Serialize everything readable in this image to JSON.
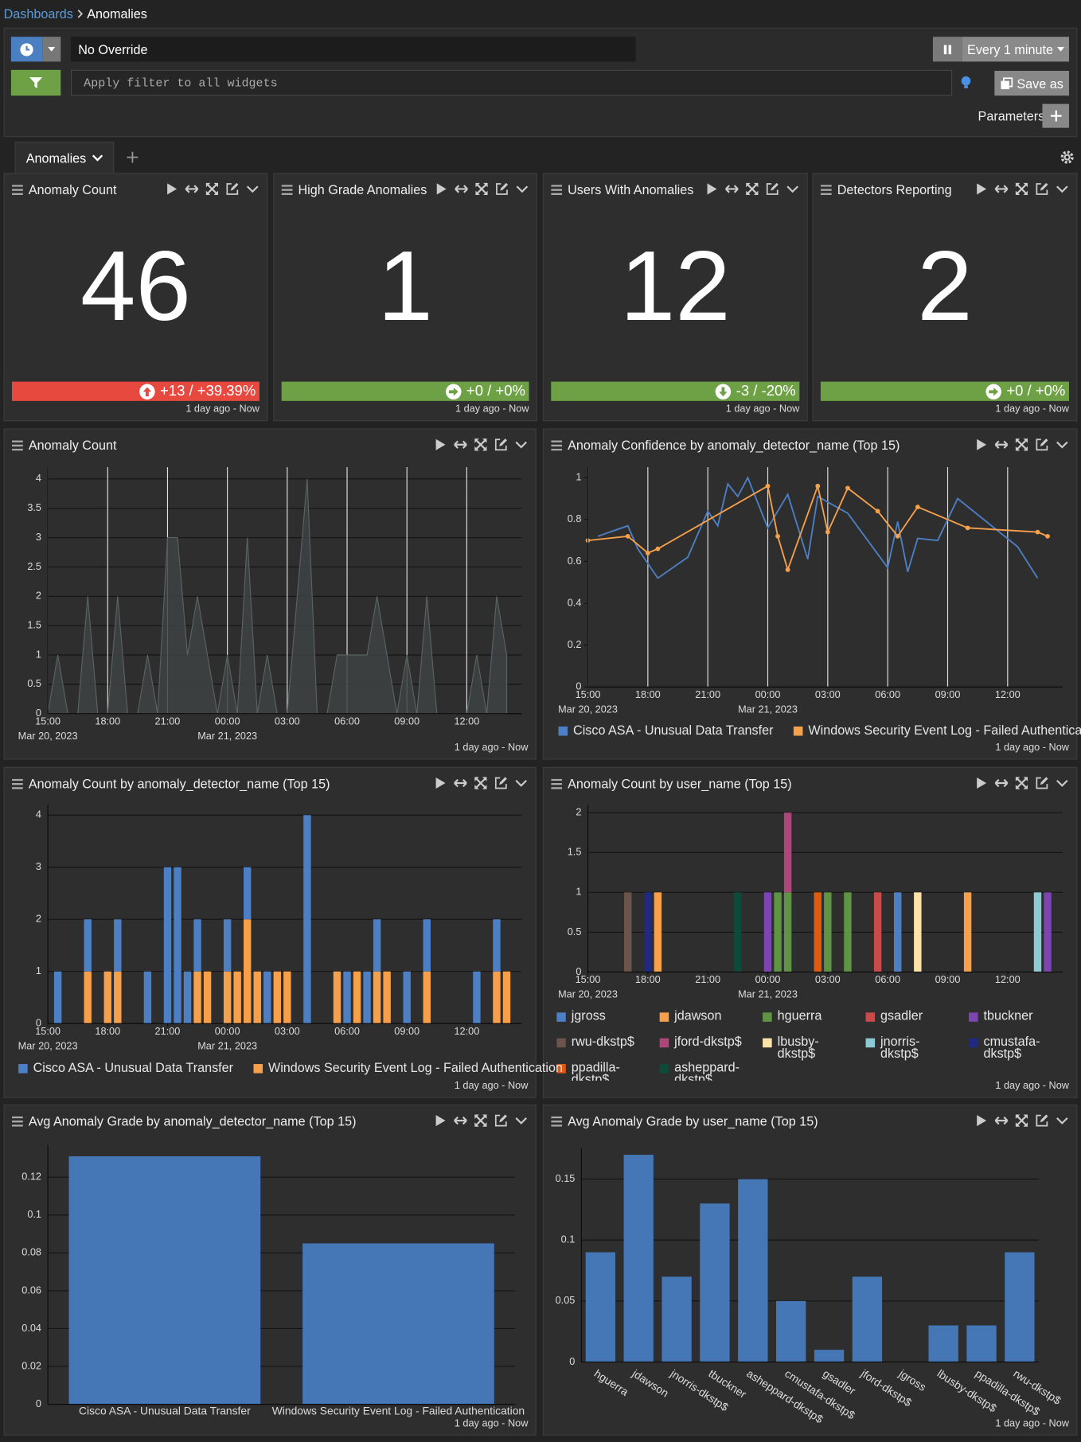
{
  "breadcrumb": {
    "parent": "Dashboards",
    "current": "Anomalies"
  },
  "toolbar": {
    "time_override": "No Override",
    "refresh": "Every 1 minute",
    "filter_placeholder": "Apply filter to all widgets",
    "save": "Save as",
    "parameters": "Parameters"
  },
  "tabs": [
    "Anomalies"
  ],
  "stats": [
    {
      "title": "Anomaly Count",
      "value": 46,
      "change": "+13 / +39.39%",
      "trend": "up",
      "color": "#e8493f",
      "footer": "1 day ago - Now"
    },
    {
      "title": "High Grade Anomalies",
      "value": 1,
      "change": "+0 / +0%",
      "trend": "flat",
      "color": "#6ea046",
      "footer": "1 day ago - Now"
    },
    {
      "title": "Users With Anomalies",
      "value": 12,
      "change": "-3 / -20%",
      "trend": "down",
      "color": "#6ea046",
      "footer": "1 day ago - Now"
    },
    {
      "title": "Detectors Reporting",
      "value": 2,
      "change": "+0 / +0%",
      "trend": "flat",
      "color": "#6ea046",
      "footer": "1 day ago - Now"
    }
  ],
  "chart_data": [
    {
      "type": "area",
      "title": "Anomaly Count",
      "footer": "1 day ago - Now",
      "color": "#3d4242",
      "line_color": "#5b6262",
      "grid": "both",
      "x": [
        "2023-03-20T15:00",
        "2023-03-20T15:30",
        "2023-03-20T16:00",
        "2023-03-20T16:30",
        "2023-03-20T17:00",
        "2023-03-20T17:30",
        "2023-03-20T18:00",
        "2023-03-20T18:30",
        "2023-03-20T19:00",
        "2023-03-20T19:30",
        "2023-03-20T20:00",
        "2023-03-20T20:30",
        "2023-03-20T21:00",
        "2023-03-20T21:30",
        "2023-03-20T22:00",
        "2023-03-20T22:30",
        "2023-03-20T23:00",
        "2023-03-20T23:30",
        "2023-03-21T00:00",
        "2023-03-21T00:30",
        "2023-03-21T01:00",
        "2023-03-21T01:30",
        "2023-03-21T02:00",
        "2023-03-21T02:30",
        "2023-03-21T03:00",
        "2023-03-21T03:30",
        "2023-03-21T04:00",
        "2023-03-21T04:30",
        "2023-03-21T05:00",
        "2023-03-21T05:30",
        "2023-03-21T06:00",
        "2023-03-21T06:30",
        "2023-03-21T07:00",
        "2023-03-21T07:30",
        "2023-03-21T08:00",
        "2023-03-21T08:30",
        "2023-03-21T09:00",
        "2023-03-21T09:30",
        "2023-03-21T10:00",
        "2023-03-21T10:30",
        "2023-03-21T11:00",
        "2023-03-21T11:30",
        "2023-03-21T12:00",
        "2023-03-21T12:30",
        "2023-03-21T13:00",
        "2023-03-21T13:30",
        "2023-03-21T14:00"
      ],
      "values": [
        0,
        1,
        0,
        0,
        2,
        0,
        0,
        2,
        0,
        0,
        1,
        0,
        3,
        3,
        1,
        2,
        1,
        0,
        1,
        0,
        3,
        0,
        1,
        0,
        0,
        2,
        4,
        0,
        0,
        1,
        1,
        1,
        1,
        2,
        1,
        0,
        1,
        0,
        2,
        0,
        0,
        0,
        0,
        1,
        0,
        2,
        1
      ],
      "ylim": [
        0,
        4.2
      ],
      "yticks": [
        0,
        0.5,
        1,
        1.5,
        2,
        2.5,
        3,
        3.5,
        4
      ],
      "xlim": [
        "2023-03-20T15:00",
        "2023-03-21T14:45"
      ],
      "xticks": [
        {
          "value": "2023-03-20T15:00",
          "label": "15:00"
        },
        {
          "value": "2023-03-20T18:00",
          "label": "18:00"
        },
        {
          "value": "2023-03-20T21:00",
          "label": "21:00"
        },
        {
          "value": "2023-03-21T00:00",
          "label": "00:00"
        },
        {
          "value": "2023-03-21T03:00",
          "label": "03:00"
        },
        {
          "value": "2023-03-21T06:00",
          "label": "06:00"
        },
        {
          "value": "2023-03-21T09:00",
          "label": "09:00"
        },
        {
          "value": "2023-03-21T12:00",
          "label": "12:00"
        }
      ],
      "xdates": [
        {
          "value": "2023-03-20T15:00",
          "label": "Mar 20, 2023"
        },
        {
          "value": "2023-03-21T00:00",
          "label": "Mar 21, 2023"
        }
      ]
    },
    {
      "type": "line",
      "title": "Anomaly Confidence by anomaly_detector_name (Top 15)",
      "footer": "1 day ago - Now",
      "grid": "x",
      "series": [
        {
          "name": "Cisco ASA - Unusual Data Transfer",
          "color": "#4d7fc4",
          "markers": false,
          "x": [
            "2023-03-20T15:30",
            "2023-03-20T17:00",
            "2023-03-20T17:30",
            "2023-03-20T18:30",
            "2023-03-20T20:00",
            "2023-03-20T21:00",
            "2023-03-20T21:30",
            "2023-03-20T22:00",
            "2023-03-20T22:30",
            "2023-03-20T23:00",
            "2023-03-21T00:00",
            "2023-03-21T01:00",
            "2023-03-21T02:00",
            "2023-03-21T02:30",
            "2023-03-21T04:00",
            "2023-03-21T06:00",
            "2023-03-21T06:30",
            "2023-03-21T07:00",
            "2023-03-21T07:30",
            "2023-03-21T08:30",
            "2023-03-21T09:30",
            "2023-03-21T12:30",
            "2023-03-21T13:30"
          ],
          "values": [
            0.72,
            0.77,
            0.66,
            0.52,
            0.62,
            0.84,
            0.77,
            0.97,
            0.91,
            1.0,
            0.76,
            0.92,
            0.61,
            0.91,
            0.83,
            0.57,
            0.79,
            0.55,
            0.71,
            0.7,
            0.9,
            0.67,
            0.52
          ]
        },
        {
          "name": "Windows Security Event Log - Failed Authentication",
          "color": "#f7a04b",
          "markers": true,
          "x": [
            "2023-03-20T15:00",
            "2023-03-20T17:00",
            "2023-03-20T18:00",
            "2023-03-20T18:30",
            "2023-03-21T00:00",
            "2023-03-21T00:30",
            "2023-03-21T01:00",
            "2023-03-21T02:30",
            "2023-03-21T03:00",
            "2023-03-21T04:00",
            "2023-03-21T05:30",
            "2023-03-21T06:30",
            "2023-03-21T07:30",
            "2023-03-21T10:00",
            "2023-03-21T13:30",
            "2023-03-21T14:00"
          ],
          "values": [
            0.7,
            0.72,
            0.64,
            0.66,
            0.96,
            0.72,
            0.56,
            0.96,
            0.74,
            0.95,
            0.84,
            0.72,
            0.86,
            0.76,
            0.74,
            0.72
          ]
        }
      ],
      "ylim": [
        0,
        1.05
      ],
      "yticks": [
        0,
        0.2,
        0.4,
        0.6,
        0.8,
        1
      ],
      "xlim": [
        "2023-03-20T15:00",
        "2023-03-21T14:45"
      ],
      "xticks": [
        {
          "value": "2023-03-20T15:00",
          "label": "15:00"
        },
        {
          "value": "2023-03-20T18:00",
          "label": "18:00"
        },
        {
          "value": "2023-03-20T21:00",
          "label": "21:00"
        },
        {
          "value": "2023-03-21T00:00",
          "label": "00:00"
        },
        {
          "value": "2023-03-21T03:00",
          "label": "03:00"
        },
        {
          "value": "2023-03-21T06:00",
          "label": "06:00"
        },
        {
          "value": "2023-03-21T09:00",
          "label": "09:00"
        },
        {
          "value": "2023-03-21T12:00",
          "label": "12:00"
        }
      ],
      "xdates": [
        {
          "value": "2023-03-20T15:00",
          "label": "Mar 20, 2023"
        },
        {
          "value": "2023-03-21T00:00",
          "label": "Mar 21, 2023"
        }
      ]
    },
    {
      "type": "stacked_bar",
      "title": "Anomaly Count by anomaly_detector_name (Top 15)",
      "footer": "1 day ago - Now",
      "grid": "y",
      "x": [
        "2023-03-20T15:30",
        "2023-03-20T17:00",
        "2023-03-20T18:00",
        "2023-03-20T18:30",
        "2023-03-20T20:00",
        "2023-03-20T21:00",
        "2023-03-20T21:30",
        "2023-03-20T22:00",
        "2023-03-20T22:30",
        "2023-03-20T23:00",
        "2023-03-21T00:00",
        "2023-03-21T00:30",
        "2023-03-21T01:00",
        "2023-03-21T01:30",
        "2023-03-21T02:00",
        "2023-03-21T02:30",
        "2023-03-21T03:00",
        "2023-03-21T04:00",
        "2023-03-21T05:30",
        "2023-03-21T06:00",
        "2023-03-21T06:30",
        "2023-03-21T07:00",
        "2023-03-21T07:30",
        "2023-03-21T08:00",
        "2023-03-21T09:00",
        "2023-03-21T10:00",
        "2023-03-21T12:30",
        "2023-03-21T13:30",
        "2023-03-21T14:00"
      ],
      "series": [
        {
          "name": "Cisco ASA - Unusual Data Transfer",
          "color": "#4d7fc4",
          "values": [
            1,
            1,
            null,
            1,
            1,
            3,
            3,
            1,
            1,
            null,
            1,
            null,
            1,
            null,
            1,
            null,
            null,
            4,
            null,
            1,
            null,
            1,
            1,
            null,
            1,
            1,
            1,
            1,
            null
          ]
        },
        {
          "name": "Windows Security Event Log - Failed Authentication",
          "color": "#f7a04b",
          "values": [
            null,
            1,
            1,
            1,
            null,
            null,
            null,
            null,
            1,
            1,
            1,
            1,
            2,
            1,
            null,
            1,
            1,
            null,
            1,
            null,
            1,
            null,
            1,
            1,
            null,
            1,
            null,
            1,
            1
          ]
        }
      ],
      "ylim": [
        0,
        4.2
      ],
      "yticks": [
        0,
        1,
        2,
        3,
        4
      ],
      "xlim": [
        "2023-03-20T15:00",
        "2023-03-21T14:45"
      ],
      "xticks": [
        {
          "value": "2023-03-20T15:00",
          "label": "15:00"
        },
        {
          "value": "2023-03-20T18:00",
          "label": "18:00"
        },
        {
          "value": "2023-03-20T21:00",
          "label": "21:00"
        },
        {
          "value": "2023-03-21T00:00",
          "label": "00:00"
        },
        {
          "value": "2023-03-21T03:00",
          "label": "03:00"
        },
        {
          "value": "2023-03-21T06:00",
          "label": "06:00"
        },
        {
          "value": "2023-03-21T09:00",
          "label": "09:00"
        },
        {
          "value": "2023-03-21T12:00",
          "label": "12:00"
        }
      ],
      "xdates": [
        {
          "value": "2023-03-20T15:00",
          "label": "Mar 20, 2023"
        },
        {
          "value": "2023-03-21T00:00",
          "label": "Mar 21, 2023"
        }
      ]
    },
    {
      "type": "stacked_bar",
      "title": "Anomaly Count by user_name (Top 15)",
      "footer": "1 day ago - Now",
      "grid": "y",
      "x": [
        "2023-03-20T17:00",
        "2023-03-20T18:00",
        "2023-03-20T18:30",
        "2023-03-20T22:30",
        "2023-03-21T00:00",
        "2023-03-21T00:30",
        "2023-03-21T01:00",
        "2023-03-21T02:30",
        "2023-03-21T03:00",
        "2023-03-21T04:00",
        "2023-03-21T05:30",
        "2023-03-21T06:30",
        "2023-03-21T07:30",
        "2023-03-21T10:00",
        "2023-03-21T13:30",
        "2023-03-21T14:00"
      ],
      "series": [
        {
          "name": "jgross",
          "color": "#4d7fc4",
          "values": [
            null,
            null,
            null,
            null,
            null,
            null,
            null,
            null,
            null,
            null,
            null,
            1,
            null,
            null,
            null,
            null
          ]
        },
        {
          "name": "jdawson",
          "color": "#f7a04b",
          "values": [
            null,
            null,
            1,
            null,
            null,
            null,
            null,
            null,
            null,
            null,
            null,
            null,
            null,
            1,
            null,
            null
          ]
        },
        {
          "name": "hguerra",
          "color": "#5e9444",
          "values": [
            null,
            null,
            null,
            null,
            null,
            1,
            1,
            null,
            1,
            1,
            null,
            null,
            null,
            null,
            null,
            null
          ]
        },
        {
          "name": "gsadler",
          "color": "#c94a4a",
          "values": [
            null,
            null,
            null,
            null,
            null,
            null,
            null,
            null,
            null,
            null,
            1,
            null,
            null,
            null,
            null,
            null
          ]
        },
        {
          "name": "tbuckner",
          "color": "#7c45b0",
          "values": [
            null,
            null,
            null,
            null,
            1,
            null,
            null,
            null,
            null,
            null,
            null,
            null,
            null,
            null,
            null,
            1
          ]
        },
        {
          "name": "rwu-dkstp$",
          "color": "#6b544b",
          "values": [
            1,
            null,
            null,
            null,
            null,
            null,
            null,
            null,
            null,
            null,
            null,
            null,
            null,
            null,
            null,
            null
          ]
        },
        {
          "name": "jford-dkstp$",
          "color": "#b0457a",
          "values": [
            null,
            null,
            null,
            null,
            null,
            null,
            1,
            null,
            null,
            null,
            null,
            null,
            null,
            null,
            null,
            null
          ]
        },
        {
          "name": "lbusby-dkstp$",
          "color": "#fde3a7",
          "values": [
            null,
            null,
            null,
            null,
            null,
            null,
            null,
            null,
            null,
            null,
            null,
            null,
            1,
            null,
            null,
            null
          ]
        },
        {
          "name": "jnorris-dkstp$",
          "color": "#8ccbd3",
          "values": [
            null,
            null,
            null,
            null,
            null,
            null,
            null,
            null,
            null,
            null,
            null,
            null,
            null,
            null,
            1,
            null
          ]
        },
        {
          "name": "cmustafa-dkstp$",
          "color": "#1f2a80",
          "values": [
            null,
            1,
            null,
            null,
            null,
            null,
            null,
            null,
            null,
            null,
            null,
            null,
            null,
            null,
            null,
            null
          ]
        },
        {
          "name": "ppadilla-dkstp$",
          "color": "#e05a10",
          "values": [
            null,
            null,
            null,
            null,
            null,
            null,
            null,
            1,
            null,
            null,
            null,
            null,
            null,
            null,
            null,
            null
          ]
        },
        {
          "name": "asheppard-dkstp$",
          "color": "#0e4a3a",
          "values": [
            null,
            null,
            null,
            1,
            null,
            null,
            null,
            null,
            null,
            null,
            null,
            null,
            null,
            null,
            null,
            null
          ]
        }
      ],
      "ylim": [
        0,
        2.1
      ],
      "yticks": [
        0,
        0.5,
        1,
        1.5,
        2
      ],
      "xlim": [
        "2023-03-20T15:00",
        "2023-03-21T14:45"
      ],
      "xticks": [
        {
          "value": "2023-03-20T15:00",
          "label": "15:00"
        },
        {
          "value": "2023-03-20T18:00",
          "label": "18:00"
        },
        {
          "value": "2023-03-20T21:00",
          "label": "21:00"
        },
        {
          "value": "2023-03-21T00:00",
          "label": "00:00"
        },
        {
          "value": "2023-03-21T03:00",
          "label": "03:00"
        },
        {
          "value": "2023-03-21T06:00",
          "label": "06:00"
        },
        {
          "value": "2023-03-21T09:00",
          "label": "09:00"
        },
        {
          "value": "2023-03-21T12:00",
          "label": "12:00"
        }
      ],
      "xdates": [
        {
          "value": "2023-03-20T15:00",
          "label": "Mar 20, 2023"
        },
        {
          "value": "2023-03-21T00:00",
          "label": "Mar 21, 2023"
        }
      ]
    },
    {
      "type": "bar",
      "title": "Avg Anomaly Grade by anomaly_detector_name (Top 15)",
      "footer": "1 day ago - Now",
      "grid": "y",
      "color": "#4576b5",
      "categories": [
        "Cisco ASA - Unusual Data Transfer",
        "Windows Security Event Log - Failed Authentication"
      ],
      "values": [
        0.131,
        0.085
      ],
      "ylim": [
        0,
        0.137
      ],
      "yticks": [
        0,
        0.02,
        0.04,
        0.06,
        0.08,
        0.1,
        0.12
      ]
    },
    {
      "type": "bar",
      "title": "Avg Anomaly Grade by user_name (Top 15)",
      "footer": "1 day ago - Now",
      "grid": "y",
      "color": "#4576b5",
      "rotate_labels": true,
      "categories": [
        "hguerra",
        "jdawson",
        "jnorris-dkstp$",
        "tbuckner",
        "asheppard-dkstp$",
        "cmustafa-dkstp$",
        "gsadler",
        "jford-dkstp$",
        "jgross",
        "lbusby-dkstp$",
        "ppadilla-dkstp$",
        "rwu-dkstp$"
      ],
      "values": [
        0.09,
        0.17,
        0.07,
        0.13,
        0.15,
        0.05,
        0.01,
        0.07,
        0,
        0.03,
        0.03,
        0.09
      ],
      "ylim": [
        0,
        0.175
      ],
      "yticks": [
        0,
        0.05,
        0.1,
        0.15
      ]
    }
  ]
}
